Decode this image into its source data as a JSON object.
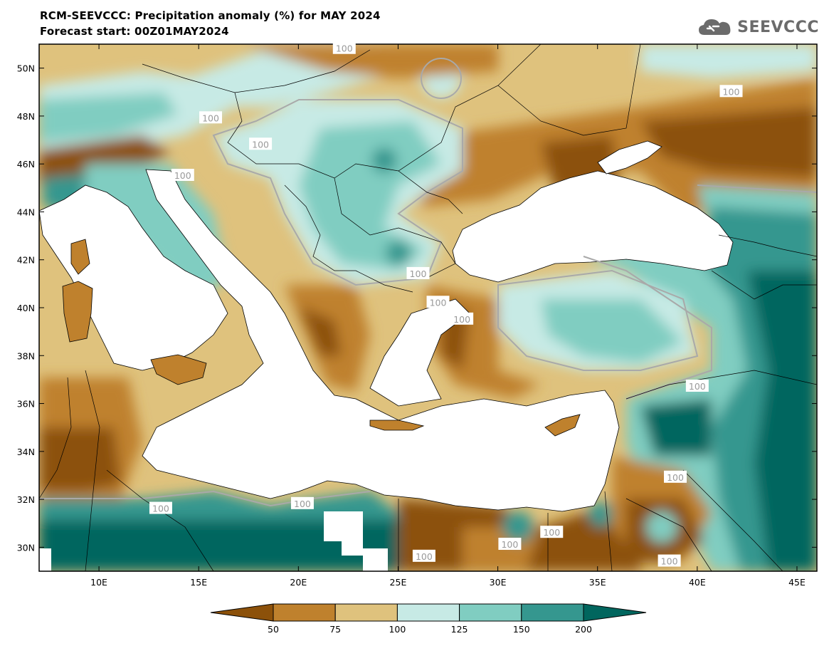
{
  "title_line1": "RCM-SEEVCCC: Precipitation anomaly (%) for MAY 2024",
  "title_line2": "Forecast start: 00Z01MAY2024",
  "logo": {
    "text": "SEEVCCC",
    "icon": "cloud-icon"
  },
  "map": {
    "lon_range": [
      7,
      46
    ],
    "lat_range": [
      29,
      51
    ],
    "lon_ticks": [
      {
        "value": 10,
        "label": "10E"
      },
      {
        "value": 15,
        "label": "15E"
      },
      {
        "value": 20,
        "label": "20E"
      },
      {
        "value": 25,
        "label": "25E"
      },
      {
        "value": 30,
        "label": "30E"
      },
      {
        "value": 35,
        "label": "35E"
      },
      {
        "value": 40,
        "label": "40E"
      },
      {
        "value": 45,
        "label": "45E"
      }
    ],
    "lat_ticks": [
      {
        "value": 30,
        "label": "30N"
      },
      {
        "value": 32,
        "label": "32N"
      },
      {
        "value": 34,
        "label": "34N"
      },
      {
        "value": 36,
        "label": "36N"
      },
      {
        "value": 38,
        "label": "38N"
      },
      {
        "value": 40,
        "label": "40N"
      },
      {
        "value": 42,
        "label": "42N"
      },
      {
        "value": 44,
        "label": "44N"
      },
      {
        "value": 46,
        "label": "46N"
      },
      {
        "value": 48,
        "label": "48N"
      },
      {
        "value": 50,
        "label": "50N"
      }
    ],
    "contour_labels": [
      {
        "lon": 22.3,
        "lat": 50.8,
        "text": "100"
      },
      {
        "lon": 41.7,
        "lat": 49.0,
        "text": "100"
      },
      {
        "lon": 15.6,
        "lat": 47.9,
        "text": "100"
      },
      {
        "lon": 18.1,
        "lat": 46.8,
        "text": "100"
      },
      {
        "lon": 14.2,
        "lat": 45.5,
        "text": "100"
      },
      {
        "lon": 26.0,
        "lat": 41.4,
        "text": "100"
      },
      {
        "lon": 27.0,
        "lat": 40.2,
        "text": "100"
      },
      {
        "lon": 28.2,
        "lat": 39.5,
        "text": "100"
      },
      {
        "lon": 40.0,
        "lat": 36.7,
        "text": "100"
      },
      {
        "lon": 38.9,
        "lat": 32.9,
        "text": "100"
      },
      {
        "lon": 20.2,
        "lat": 31.8,
        "text": "100"
      },
      {
        "lon": 13.1,
        "lat": 31.6,
        "text": "100"
      },
      {
        "lon": 32.7,
        "lat": 30.6,
        "text": "100"
      },
      {
        "lon": 30.6,
        "lat": 30.1,
        "text": "100"
      },
      {
        "lon": 26.3,
        "lat": 29.6,
        "text": "100"
      },
      {
        "lon": 38.6,
        "lat": 29.4,
        "text": "100"
      }
    ]
  },
  "colorbar": {
    "labels": [
      "50",
      "75",
      "100",
      "125",
      "150",
      "200"
    ],
    "colors": [
      "#8c510a",
      "#bf812d",
      "#dfc27d",
      "#c7eae5",
      "#80cdc1",
      "#35978f",
      "#01665e"
    ]
  }
}
